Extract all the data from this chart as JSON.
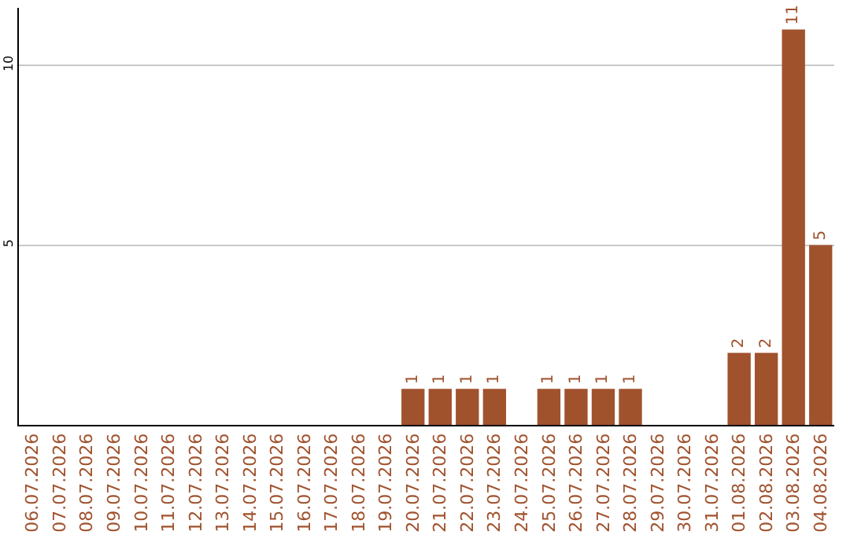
{
  "chart_data": {
    "type": "bar",
    "categories": [
      "06.07.2026",
      "07.07.2026",
      "08.07.2026",
      "09.07.2026",
      "10.07.2026",
      "11.07.2026",
      "12.07.2026",
      "13.07.2026",
      "14.07.2026",
      "15.07.2026",
      "16.07.2026",
      "17.07.2026",
      "18.07.2026",
      "19.07.2026",
      "20.07.2026",
      "21.07.2026",
      "22.07.2026",
      "23.07.2026",
      "24.07.2026",
      "25.07.2026",
      "26.07.2026",
      "27.07.2026",
      "28.07.2026",
      "29.07.2026",
      "30.07.2026",
      "31.07.2026",
      "01.08.2026",
      "02.08.2026",
      "03.08.2026",
      "04.08.2026"
    ],
    "values": [
      0,
      0,
      0,
      0,
      0,
      0,
      0,
      0,
      0,
      0,
      0,
      0,
      0,
      0,
      1,
      1,
      1,
      1,
      0,
      1,
      1,
      1,
      1,
      0,
      0,
      0,
      2,
      2,
      11,
      5
    ],
    "value_labels": [
      null,
      null,
      null,
      null,
      null,
      null,
      null,
      null,
      null,
      null,
      null,
      null,
      null,
      null,
      "1",
      "1",
      "1",
      "1",
      null,
      "1",
      "1",
      "1",
      "1",
      null,
      null,
      null,
      "2",
      "2",
      "11",
      "5"
    ],
    "color": "#a0522d",
    "ylim": [
      0,
      11.6
    ],
    "yticks": [
      5,
      10
    ],
    "grid": "y"
  }
}
